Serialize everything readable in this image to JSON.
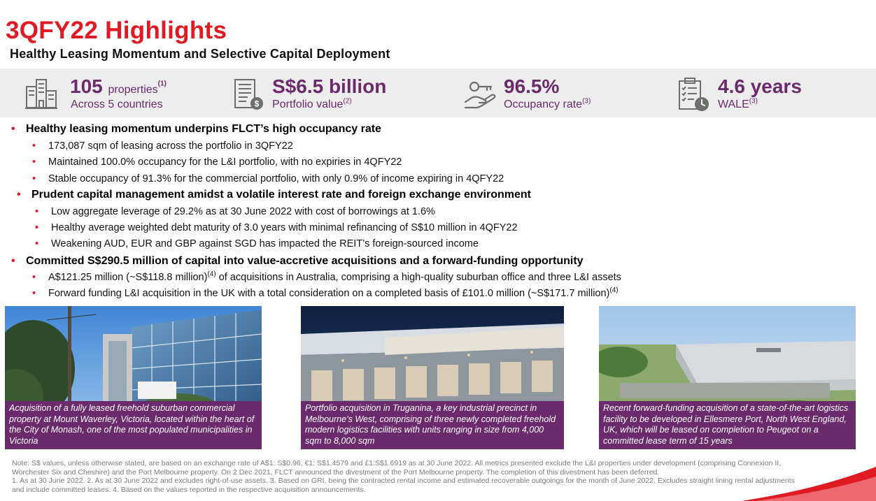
{
  "header": {
    "title": "3QFY22 Highlights",
    "subtitle": "Healthy Leasing Momentum and Selective Capital Deployment"
  },
  "kpis": [
    {
      "icon": "buildings-icon",
      "value": "105",
      "value_suffix": "properties",
      "value_note": "(1)",
      "label": "Across 5 countries",
      "label_note": ""
    },
    {
      "icon": "portfolio-value-icon",
      "value": "S$6.5 billion",
      "value_suffix": "",
      "value_note": "",
      "label": "Portfolio value",
      "label_note": "(2)"
    },
    {
      "icon": "hand-key-icon",
      "value": "96.5%",
      "value_suffix": "",
      "value_note": "",
      "label": "Occupancy rate",
      "label_note": "(3)"
    },
    {
      "icon": "clipboard-clock-icon",
      "value": "4.6 years",
      "value_suffix": "",
      "value_note": "",
      "label": "WALE",
      "label_note": "(3)"
    }
  ],
  "sections": [
    {
      "heading": "Healthy leasing momentum underpins FLCT’s high occupancy rate",
      "items": [
        {
          "text": "173,087 sqm of leasing across the portfolio in 3QFY22"
        },
        {
          "text": "Maintained 100.0% occupancy for the L&I portfolio, with no expiries in 4QFY22"
        },
        {
          "text": "Stable occupancy of 91.3% for the commercial portfolio, with only 0.9% of income expiring in 4QFY22"
        }
      ]
    },
    {
      "heading": "Prudent capital management amidst a volatile interest rate and foreign exchange environment",
      "items": [
        {
          "text": "Low aggregate leverage of 29.2% as at 30 June 2022 with cost of borrowings at 1.6%"
        },
        {
          "text": "Healthy average weighted debt maturity of 3.0 years with minimal refinancing of S$10 million in 4QFY22"
        },
        {
          "text": "Weakening AUD, EUR and GBP against SGD has impacted the REIT’s foreign-sourced income"
        }
      ]
    },
    {
      "heading": "Committed S$290.5 million of capital into value-accretive acquisitions and a forward-funding opportunity",
      "items": [
        {
          "pre": "A$121.25 million (~S$118.8 million)",
          "note": "(4)",
          "post": " of acquisitions in Australia, comprising a high-quality suburban office and three L&I assets"
        },
        {
          "pre": "Forward funding L&I acquisition in the UK with a total consideration on a completed basis of £101.0 million (~S$171.7 million)",
          "note": "(4)",
          "post": ""
        }
      ]
    }
  ],
  "photos": [
    {
      "caption": "Acquisition of a fully leased freehold suburban commercial property at Mount Waverley, Victoria, located within the heart of the City of Monash, one of the most populated municipalities in Victoria"
    },
    {
      "caption": "Portfolio acquisition in Truganina, a key industrial precinct in Melbourne’s West, comprising of three newly completed freehold modern logistics facilities with units ranging in size from 4,000 sqm to 8,000 sqm"
    },
    {
      "caption": "Recent forward-funding acquisition of a state-of-the-art logistics facility to be developed in Ellesmere Port, North West England, UK, which will be leased on completion to Peugeot on a committed lease term of 15 years"
    }
  ],
  "footnote": {
    "line1": "Note: S$ values, unless otherwise stated, are based on an exchange rate of A$1: S$0.96, €1: S$1.4579 and £1:S$1.6919 as at 30 June 2022. All metrics presented exclude the L&I properties under development (comprising Connexion II,",
    "line2": "Worchester Six and Cheshire) and the Port Melbourne property. On 2 Dec 2021, FLCT announced the divestment of the Port Melbourne property. The completion of this divestment has been deferred.",
    "line3": "1. As at 30 June 2022.   2. As at 30 June 2022 and excludes right-of-use assets.   3. Based on GRI, being the contracted rental income and estimated recoverable outgoings for the month of June 2022. Excludes straight lining rental adjustments",
    "line4": "and include committed leases.   4. Based on the values reported in the respective acquisition announcements."
  },
  "colors": {
    "accent_red": "#e01a22",
    "brand_purple": "#6b2a6b",
    "band_grey": "#ededed"
  }
}
